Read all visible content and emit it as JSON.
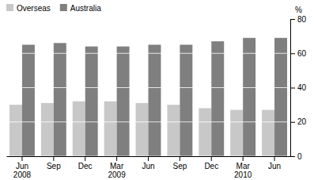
{
  "chart_data": {
    "type": "bar",
    "categories": [
      "Jun\n2008",
      "Sep",
      "Dec",
      "Mar\n2009",
      "Jun",
      "Sep",
      "Dec",
      "Mar\n2010",
      "Jun"
    ],
    "series": [
      {
        "name": "Overseas",
        "color": "#c8c8c8",
        "values": [
          30,
          31,
          32,
          32,
          31,
          30,
          28,
          27,
          27
        ]
      },
      {
        "name": "Australia",
        "color": "#7f7f7f",
        "values": [
          65,
          66,
          64,
          64,
          65,
          65,
          67,
          69,
          69
        ]
      }
    ],
    "ylabel": "%",
    "ylim": [
      0,
      80
    ],
    "yticks": [
      0,
      20,
      40,
      60,
      80
    ],
    "grid": true,
    "legend": "top-left"
  }
}
